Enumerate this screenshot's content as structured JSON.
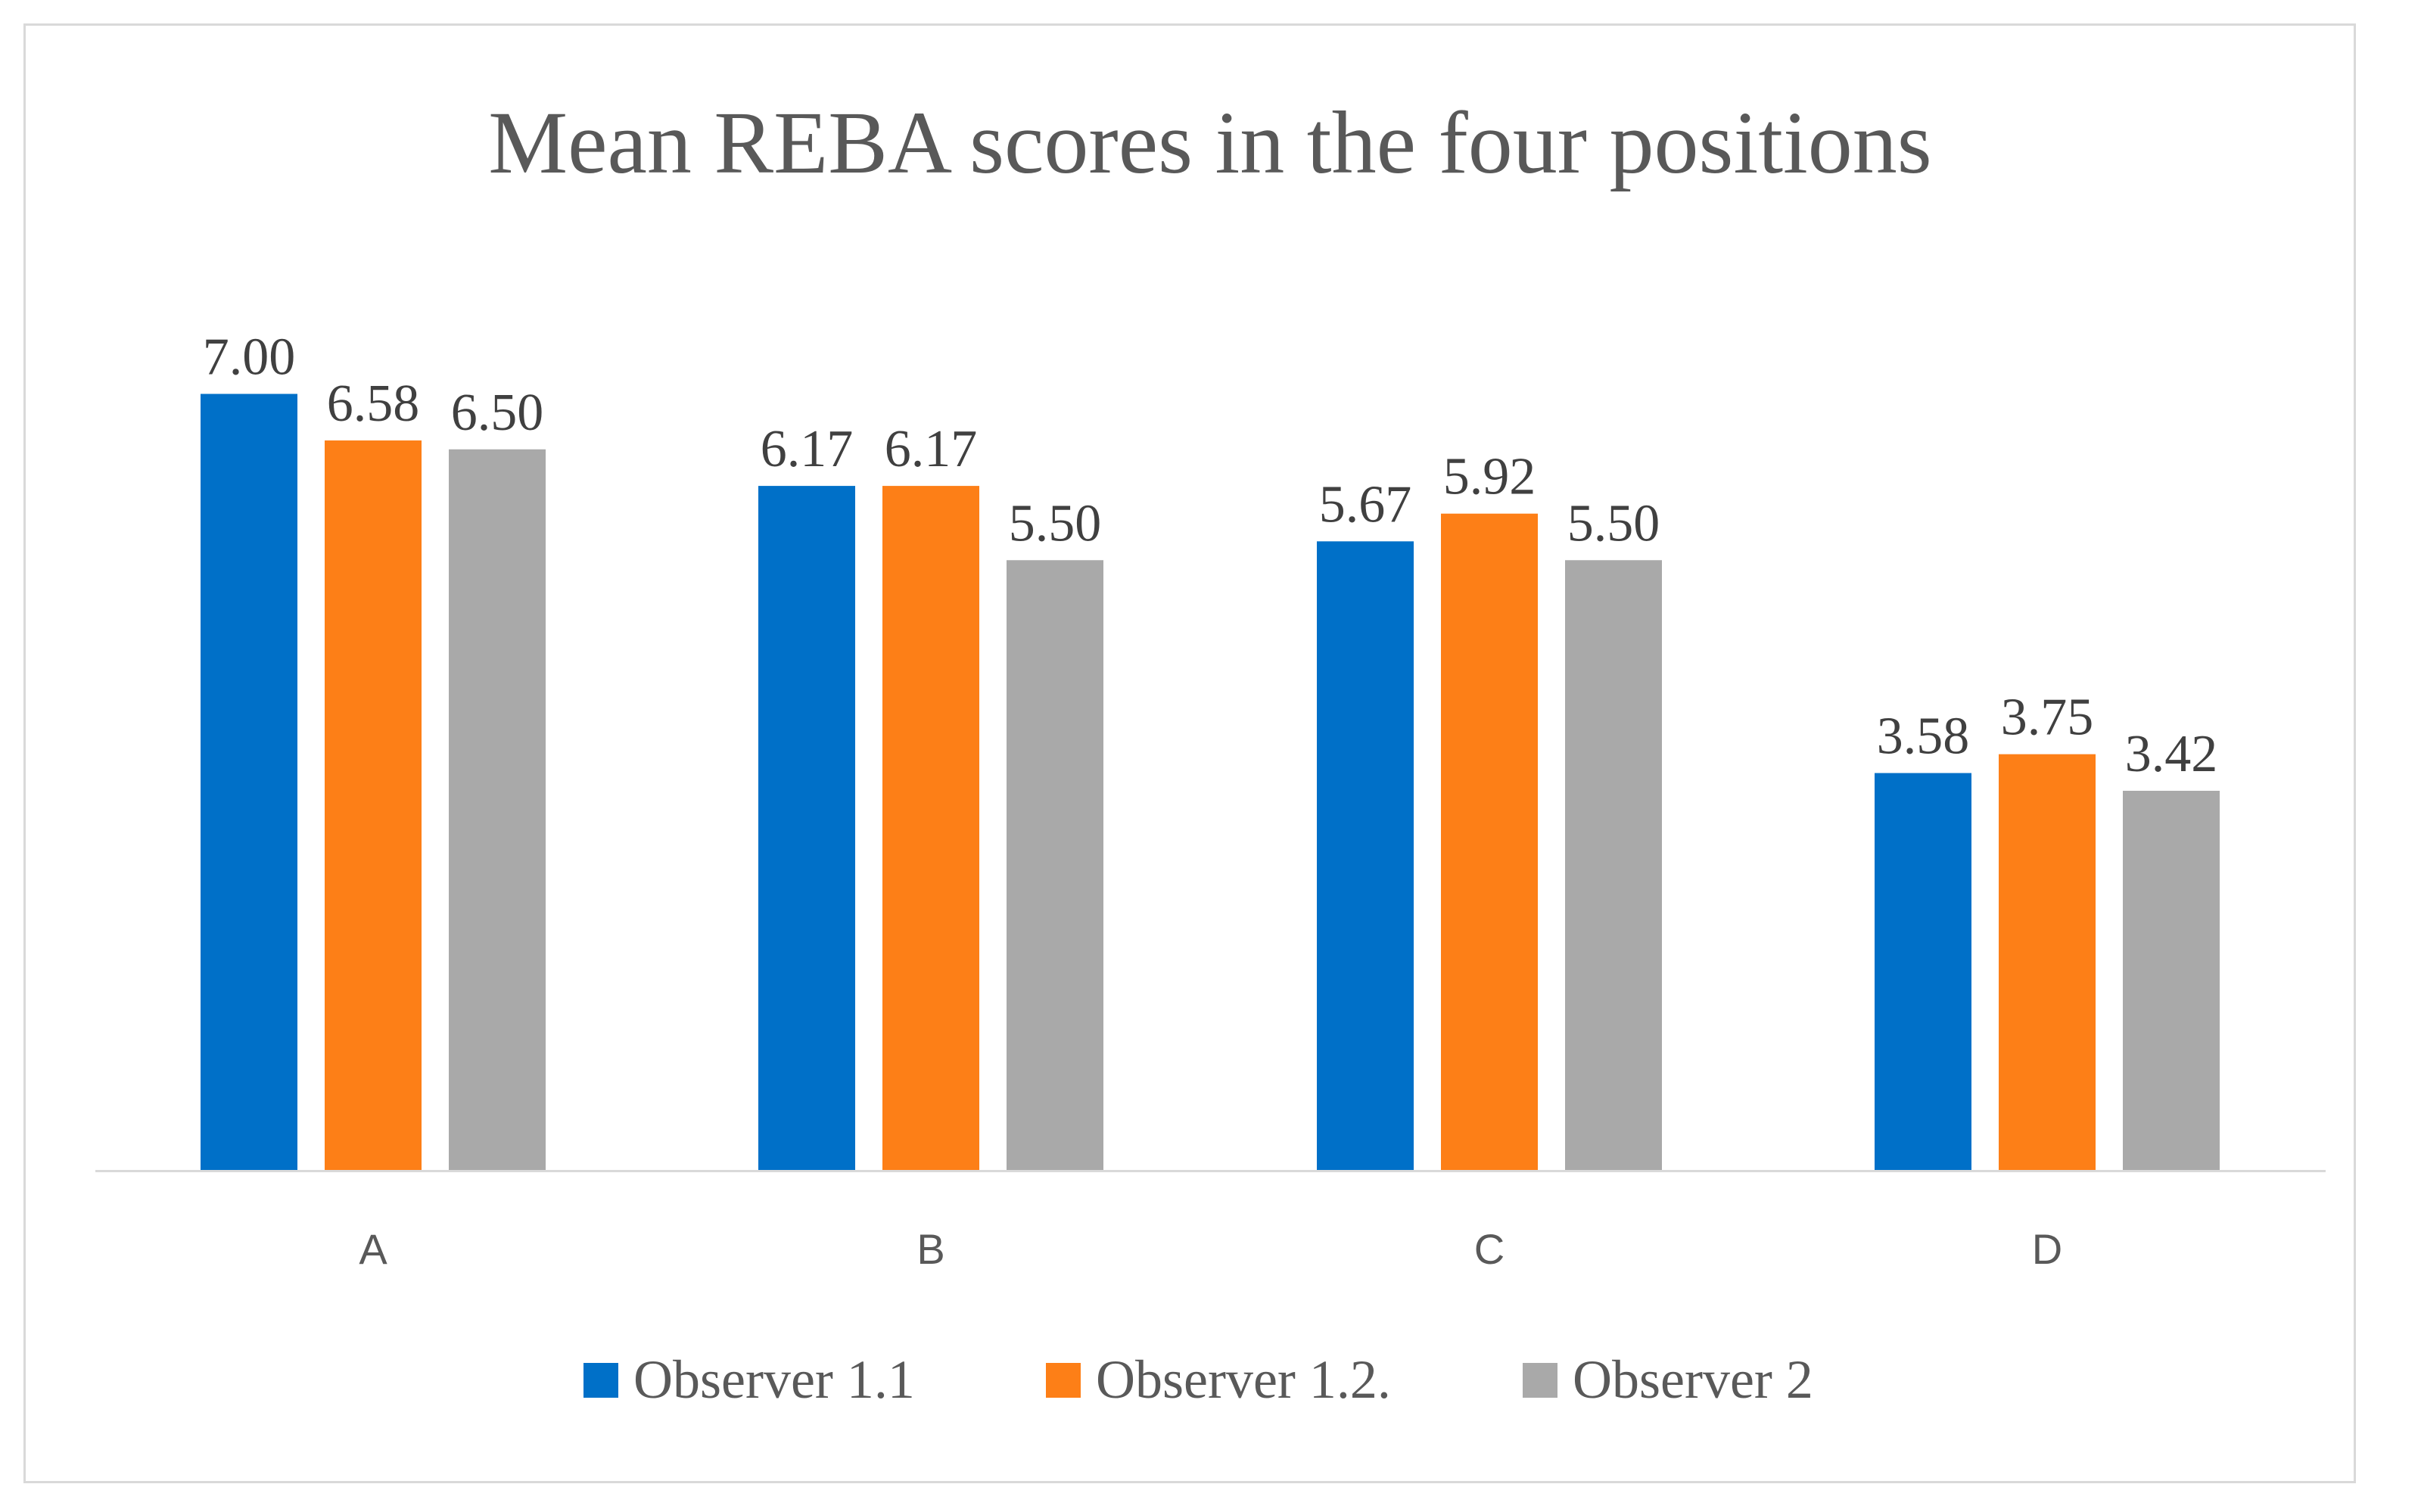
{
  "chart_data": {
    "type": "bar",
    "title": "Mean REBA scores in the four positions",
    "xlabel": "",
    "ylabel": "",
    "categories": [
      "A",
      "B",
      "C",
      "D"
    ],
    "series": [
      {
        "name": "Observer 1.1",
        "color": "#0070c8",
        "values": [
          7.0,
          6.17,
          5.67,
          3.58
        ],
        "labels": [
          "7.00",
          "6.17",
          "5.67",
          "3.58"
        ]
      },
      {
        "name": "Observer 1.2.",
        "color": "#fd7f17",
        "values": [
          6.58,
          6.17,
          5.92,
          3.75
        ],
        "labels": [
          "6.58",
          "6.17",
          "5.92",
          "3.75"
        ]
      },
      {
        "name": "Observer 2",
        "color": "#a9a9a9",
        "values": [
          6.5,
          5.5,
          5.5,
          3.42
        ],
        "labels": [
          "6.50",
          "5.50",
          "5.50",
          "3.42"
        ]
      }
    ],
    "ylim": [
      0,
      7.5
    ],
    "grid": false,
    "legend_position": "bottom",
    "axis_color": "#d9d9d9"
  }
}
